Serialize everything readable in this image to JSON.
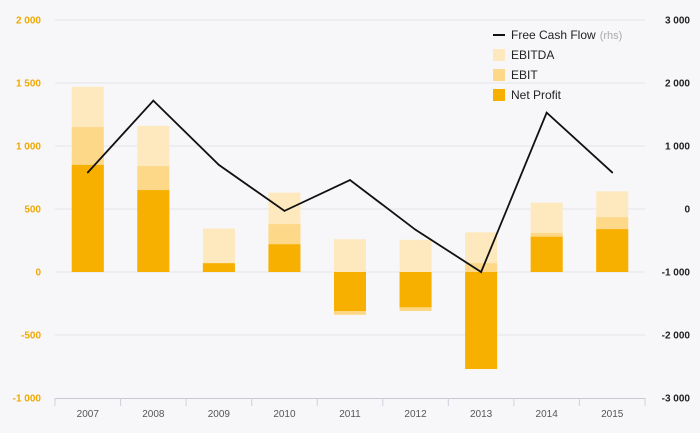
{
  "chart_data": {
    "type": "bar",
    "categories": [
      "2007",
      "2008",
      "2009",
      "2010",
      "2011",
      "2012",
      "2013",
      "2014",
      "2015"
    ],
    "series": [
      {
        "name": "EBITDA",
        "type": "bar",
        "axis": "left",
        "color": "#fde9bd",
        "values": [
          1470,
          1160,
          345,
          630,
          260,
          255,
          315,
          550,
          640
        ]
      },
      {
        "name": "EBIT",
        "type": "bar",
        "axis": "left",
        "color": "#fcd888",
        "values": [
          1150,
          840,
          65,
          380,
          -340,
          -310,
          70,
          310,
          435
        ]
      },
      {
        "name": "Net Profit",
        "type": "bar",
        "axis": "left",
        "color": "#f7b000",
        "values": [
          850,
          650,
          70,
          220,
          -310,
          -280,
          -770,
          280,
          340
        ]
      },
      {
        "name": "Free Cash Flow",
        "type": "line",
        "axis": "right",
        "color": "#111111",
        "values": [
          580,
          1720,
          700,
          -30,
          460,
          -330,
          -1000,
          1530,
          580
        ]
      }
    ],
    "left_axis": {
      "ylim": [
        -1000,
        2000
      ],
      "ticks": [
        -1000,
        -500,
        0,
        500,
        1000,
        1500,
        2000
      ],
      "tick_labels": [
        "-1 000",
        "-500",
        "0",
        "500",
        "1 000",
        "1 500",
        "2 000"
      ]
    },
    "right_axis": {
      "ylim": [
        -3000,
        3000
      ],
      "ticks": [
        -3000,
        -2000,
        -1000,
        0,
        1000,
        2000,
        3000
      ],
      "tick_labels": [
        "-3 000",
        "-2 000",
        "-1 000",
        "0",
        "1 000",
        "2 000",
        "3 000"
      ]
    },
    "legend": {
      "position": "top-right",
      "items": [
        {
          "label": "Free Cash Flow",
          "suffix": "(rhs)",
          "kind": "line",
          "color": "#111111"
        },
        {
          "label": "EBITDA",
          "suffix": "",
          "kind": "box",
          "color": "#fde9bd"
        },
        {
          "label": "EBIT",
          "suffix": "",
          "kind": "box",
          "color": "#fcd888"
        },
        {
          "label": "Net Profit",
          "suffix": "",
          "kind": "box",
          "color": "#f7b000"
        }
      ]
    },
    "grid": true
  }
}
